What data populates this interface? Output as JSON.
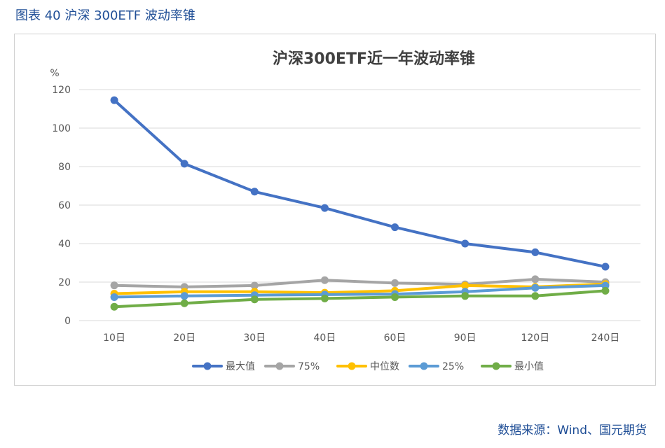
{
  "caption": "图表 40  沪深 300ETF 波动率锥",
  "source": "数据来源：Wind、国元期货",
  "colors": {
    "grid": "#d9d9d9",
    "axis_text": "#595959",
    "title_text": "#404040"
  },
  "chart_data": {
    "type": "line",
    "title": "沪深300ETF近一年波动率锥",
    "ylabel": "%",
    "xlabel": "",
    "ylim": [
      0,
      120
    ],
    "yticks": [
      0,
      20,
      40,
      60,
      80,
      100,
      120
    ],
    "grid": true,
    "legend_position": "bottom",
    "categories": [
      "10日",
      "20日",
      "30日",
      "40日",
      "60日",
      "90日",
      "120日",
      "240日"
    ],
    "series": [
      {
        "name": "最大值",
        "color": "#4472c4",
        "values": [
          114.5,
          81.5,
          67.0,
          58.5,
          48.5,
          40.0,
          35.5,
          28.0
        ]
      },
      {
        "name": "75%",
        "color": "#a5a5a5",
        "values": [
          18.3,
          17.5,
          18.2,
          21.0,
          19.5,
          18.8,
          21.5,
          20.0
        ]
      },
      {
        "name": "中位数",
        "color": "#ffc000",
        "values": [
          14.0,
          15.0,
          15.0,
          14.5,
          15.5,
          18.2,
          17.5,
          19.0
        ]
      },
      {
        "name": "25%",
        "color": "#5b9bd5",
        "values": [
          12.2,
          12.8,
          13.2,
          13.5,
          13.8,
          15.0,
          17.0,
          18.2
        ]
      },
      {
        "name": "最小值",
        "color": "#70ad47",
        "values": [
          7.2,
          9.0,
          11.0,
          11.5,
          12.2,
          12.8,
          12.8,
          15.5
        ]
      }
    ]
  }
}
